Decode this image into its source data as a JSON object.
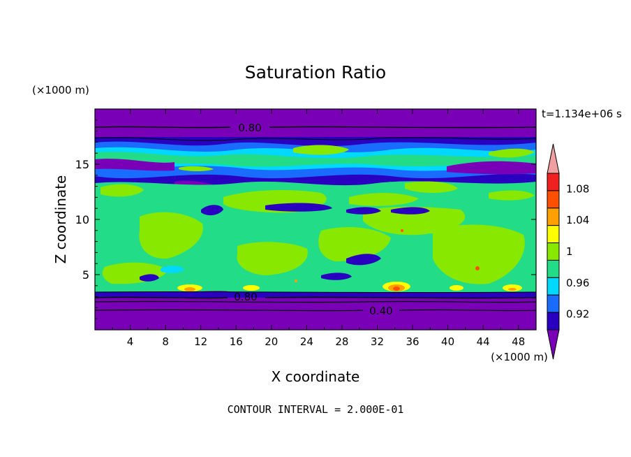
{
  "chart_data": {
    "type": "heatmap",
    "title": "Saturation Ratio",
    "xlabel": "X coordinate",
    "ylabel": "Z coordinate",
    "x_unit": "(×1000 m)",
    "y_unit": "(×1000 m)",
    "time_label": "t=1.134e+06 s",
    "footer": "CONTOUR INTERVAL = 2.000E-01",
    "xlim": [
      0,
      50
    ],
    "ylim": [
      0,
      20
    ],
    "x_ticks": [
      4,
      8,
      12,
      16,
      20,
      24,
      28,
      32,
      36,
      40,
      44,
      48
    ],
    "y_ticks": [
      5,
      10,
      15
    ],
    "colorbar": {
      "levels": [
        0.92,
        0.96,
        1,
        1.04,
        1.08
      ],
      "level_labels": [
        "0.92",
        "0.96",
        "1",
        "1.04",
        "1.08"
      ],
      "colors": [
        "#7a00b8",
        "#2a00c0",
        "#1a6cff",
        "#00d8ff",
        "#22dc88",
        "#88e800",
        "#ffff00",
        "#ffa000",
        "#ff5000",
        "#ee2020",
        "#f0a0a0"
      ],
      "extend": "both"
    },
    "contour_lines": [
      {
        "value": "0.80",
        "z": 18.3
      },
      {
        "value": "0.80",
        "z": 3.0
      },
      {
        "value": "0.40",
        "z": 2.0
      }
    ]
  }
}
